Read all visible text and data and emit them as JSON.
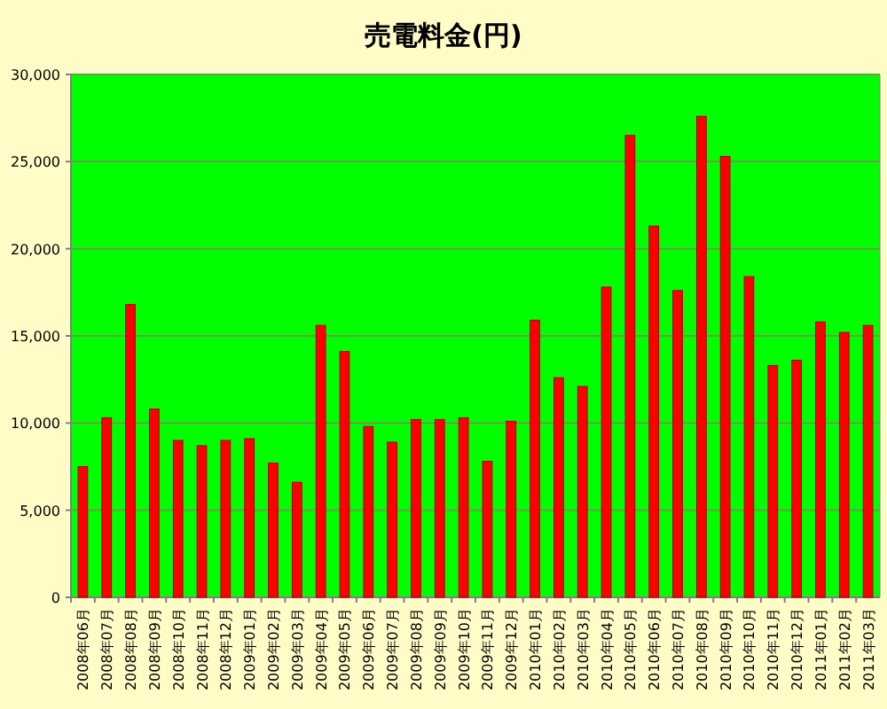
{
  "chart_data": {
    "type": "bar",
    "title": "売電料金(円)",
    "categories": [
      "2008年06月",
      "2008年07月",
      "2008年08月",
      "2008年09月",
      "2008年10月",
      "2008年11月",
      "2008年12月",
      "2009年01月",
      "2009年02月",
      "2009年03月",
      "2009年04月",
      "2009年05月",
      "2009年06月",
      "2009年07月",
      "2009年08月",
      "2009年09月",
      "2009年10月",
      "2009年11月",
      "2009年12月",
      "2010年01月",
      "2010年02月",
      "2010年03月",
      "2010年04月",
      "2010年05月",
      "2010年06月",
      "2010年07月",
      "2010年08月",
      "2010年09月",
      "2010年10月",
      "2010年11月",
      "2010年12月",
      "2011年01月",
      "2011年02月",
      "2011年03月"
    ],
    "values": [
      7500,
      10300,
      16800,
      10800,
      9000,
      8700,
      9000,
      9100,
      7700,
      6600,
      15600,
      14100,
      9800,
      8900,
      10200,
      10200,
      10300,
      7800,
      10100,
      15900,
      12600,
      12100,
      17800,
      26500,
      21300,
      17600,
      27600,
      25300,
      18400,
      13300,
      13600,
      15800,
      15200,
      15600
    ],
    "color": "#ff0000",
    "ylim": [
      0,
      30000
    ],
    "yticks": [
      {
        "value": 0,
        "label": "0"
      },
      {
        "value": 5000,
        "label": "5,000"
      },
      {
        "value": 10000,
        "label": "10,000"
      },
      {
        "value": 15000,
        "label": "15,000"
      },
      {
        "value": 20000,
        "label": "20,000"
      },
      {
        "value": 25000,
        "label": "25,000"
      },
      {
        "value": 30000,
        "label": "30,000"
      }
    ],
    "grid": "y"
  }
}
